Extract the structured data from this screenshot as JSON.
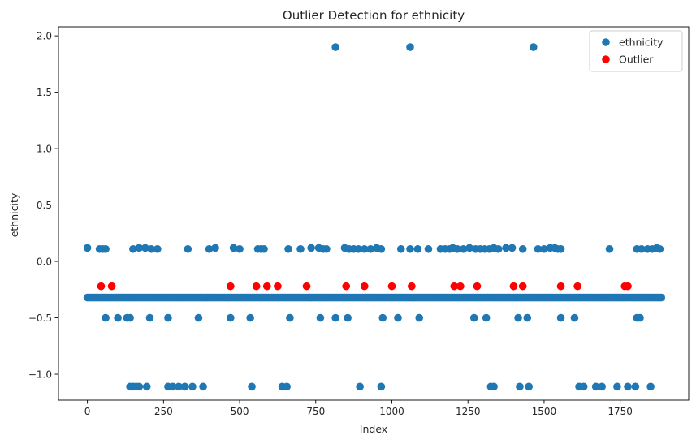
{
  "chart_data": {
    "type": "scatter",
    "title": "Outlier Detection for ethnicity",
    "xlabel": "Index",
    "ylabel": "ethnicity",
    "xlim": [
      -95,
      1975
    ],
    "ylim": [
      -1.23,
      2.08
    ],
    "xticks": [
      0,
      250,
      500,
      750,
      1000,
      1250,
      1500,
      1750
    ],
    "yticks": [
      -1.0,
      -0.5,
      0.0,
      0.5,
      1.0,
      1.5,
      2.0
    ],
    "xtick_labels": [
      "0",
      "250",
      "500",
      "750",
      "1000",
      "1250",
      "1500",
      "1750"
    ],
    "ytick_labels": [
      "−1.0",
      "−0.5",
      "0.0",
      "0.5",
      "1.0",
      "1.5",
      "2.0"
    ],
    "grid": false,
    "legend_position": "top-right",
    "series": [
      {
        "name": "ethnicity",
        "color": "#1f77b4",
        "x": [
          0,
          40,
          50,
          60,
          150,
          170,
          190,
          210,
          230,
          330,
          400,
          420,
          480,
          500,
          560,
          570,
          580,
          660,
          700,
          735,
          760,
          775,
          785,
          845,
          860,
          875,
          890,
          910,
          930,
          950,
          965,
          1030,
          1060,
          1085,
          1120,
          1160,
          1175,
          1190,
          1200,
          1215,
          1235,
          1255,
          1275,
          1290,
          1305,
          1320,
          1335,
          1350,
          1375,
          1395,
          1430,
          1480,
          1500,
          1520,
          1535,
          1545,
          1555,
          1715,
          1805,
          1820,
          1840,
          1855,
          1870,
          1880,
          60,
          100,
          130,
          140,
          205,
          265,
          365,
          470,
          535,
          665,
          765,
          815,
          855,
          970,
          1020,
          1090,
          1270,
          1310,
          1415,
          1445,
          1555,
          1600,
          1805,
          1815,
          140,
          150,
          160,
          170,
          195,
          265,
          280,
          300,
          320,
          345,
          380,
          540,
          640,
          655,
          895,
          965,
          1325,
          1335,
          1420,
          1450,
          1615,
          1630,
          1670,
          1690,
          1740,
          1775,
          1800,
          1850,
          815,
          1060,
          1465
        ],
        "y": [
          0.12,
          0.11,
          0.11,
          0.11,
          0.11,
          0.12,
          0.12,
          0.11,
          0.11,
          0.11,
          0.11,
          0.12,
          0.12,
          0.11,
          0.11,
          0.11,
          0.11,
          0.11,
          0.11,
          0.12,
          0.12,
          0.11,
          0.11,
          0.12,
          0.11,
          0.11,
          0.11,
          0.11,
          0.11,
          0.12,
          0.11,
          0.11,
          0.11,
          0.11,
          0.11,
          0.11,
          0.11,
          0.11,
          0.12,
          0.11,
          0.11,
          0.12,
          0.11,
          0.11,
          0.11,
          0.11,
          0.12,
          0.11,
          0.12,
          0.12,
          0.11,
          0.11,
          0.11,
          0.12,
          0.12,
          0.11,
          0.11,
          0.11,
          0.11,
          0.11,
          0.11,
          0.11,
          0.12,
          0.11,
          -0.5,
          -0.5,
          -0.5,
          -0.5,
          -0.5,
          -0.5,
          -0.5,
          -0.5,
          -0.5,
          -0.5,
          -0.5,
          -0.5,
          -0.5,
          -0.5,
          -0.5,
          -0.5,
          -0.5,
          -0.5,
          -0.5,
          -0.5,
          -0.5,
          -0.5,
          -0.5,
          -0.5,
          -1.11,
          -1.11,
          -1.11,
          -1.11,
          -1.11,
          -1.11,
          -1.11,
          -1.11,
          -1.11,
          -1.11,
          -1.11,
          -1.11,
          -1.11,
          -1.11,
          -1.11,
          -1.11,
          -1.11,
          -1.11,
          -1.11,
          -1.11,
          -1.11,
          -1.11,
          -1.11,
          -1.11,
          -1.11,
          -1.11,
          -1.11,
          -1.11,
          1.9,
          1.9,
          1.9
        ],
        "band": {
          "y": -0.32,
          "x_from": 0,
          "x_to": 1885,
          "step": 5
        }
      },
      {
        "name": "Outlier",
        "color": "#ff0000",
        "x": [
          45,
          80,
          470,
          555,
          590,
          625,
          720,
          850,
          910,
          1000,
          1065,
          1205,
          1225,
          1280,
          1400,
          1430,
          1555,
          1610,
          1765,
          1775
        ],
        "y": [
          -0.22,
          -0.22,
          -0.22,
          -0.22,
          -0.22,
          -0.22,
          -0.22,
          -0.22,
          -0.22,
          -0.22,
          -0.22,
          -0.22,
          -0.22,
          -0.22,
          -0.22,
          -0.22,
          -0.22,
          -0.22,
          -0.22,
          -0.22
        ]
      }
    ]
  }
}
